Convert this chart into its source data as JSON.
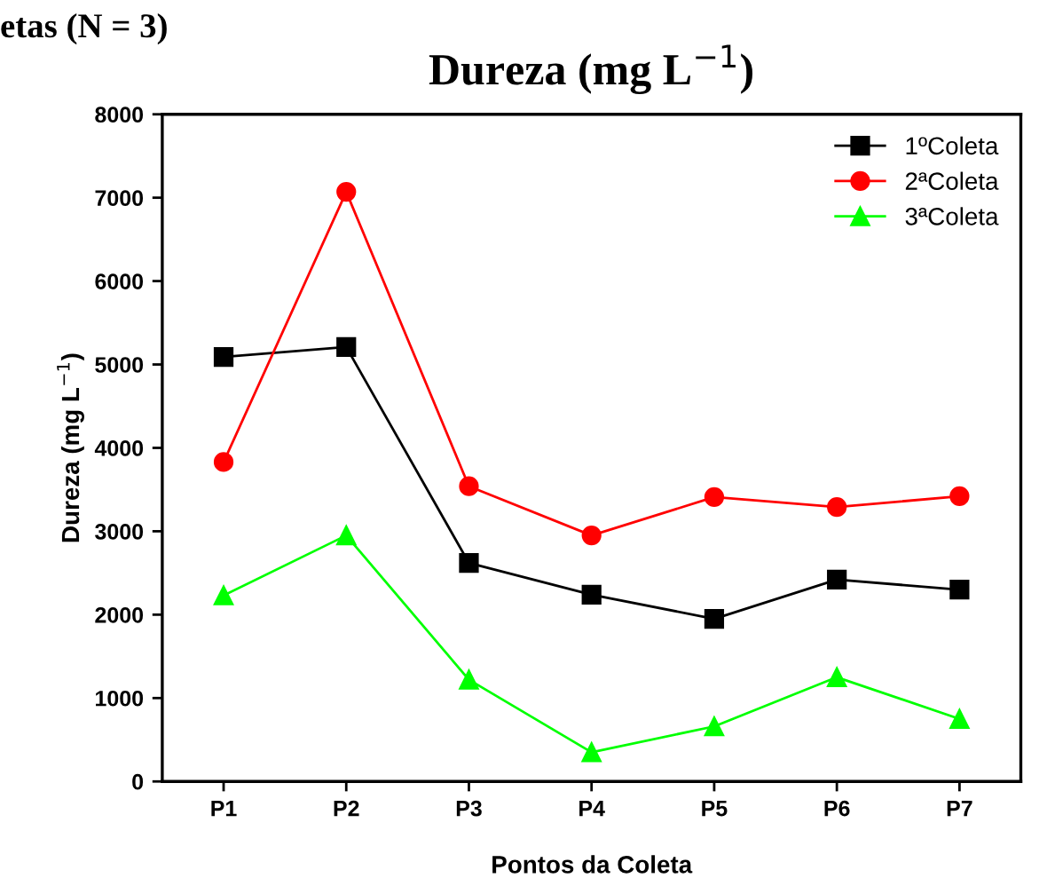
{
  "chart_data": {
    "type": "line",
    "title": "Dureza (mg L$^{−1}$)",
    "xlabel": "Pontos da Coleta",
    "ylabel": "Dureza (mg L$^{−1}$)",
    "annotations": [
      "etas (N = 3)"
    ],
    "categories": [
      "P1",
      "P2",
      "P3",
      "P4",
      "P5",
      "P6",
      "P7"
    ],
    "series": [
      {
        "name": "1ºColeta",
        "color": "#000000",
        "marker": "square",
        "values": [
          5090,
          5210,
          2620,
          2240,
          1950,
          2420,
          2300
        ]
      },
      {
        "name": "2ªColeta",
        "color": "#ff0000",
        "marker": "circle",
        "values": [
          3830,
          7070,
          3540,
          2950,
          3410,
          3290,
          3420
        ]
      },
      {
        "name": "3ªColeta",
        "color": "#00ff00",
        "marker": "triangle",
        "values": [
          2230,
          2950,
          1220,
          350,
          660,
          1250,
          750
        ]
      }
    ],
    "ylim": [
      0,
      8000
    ],
    "yticks": [
      0,
      1000,
      2000,
      3000,
      4000,
      5000,
      6000,
      7000,
      8000
    ],
    "grid": false,
    "legend": "top right",
    "line_style": "solid"
  }
}
